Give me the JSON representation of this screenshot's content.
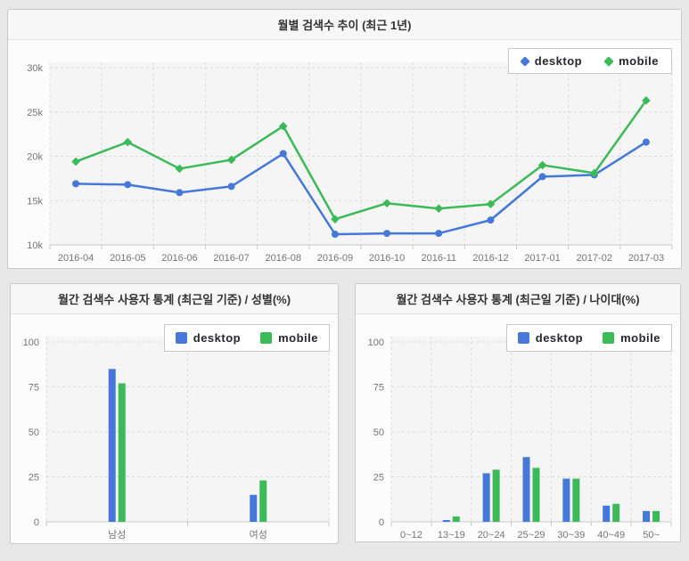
{
  "colors": {
    "desktop": "#4678d9",
    "mobile": "#3dba58",
    "plot_bg": "#f5f5f5",
    "grid": "#dcdcdc",
    "axis": "#c9c9c9",
    "tick_label": "#757575",
    "legend_text": "#26262c"
  },
  "legend": {
    "desktop_label": "desktop",
    "mobile_label": "mobile"
  },
  "chart_data": [
    {
      "type": "line",
      "title": "월별 검색수 추이 (최근 1년)",
      "categories": [
        "2016-04",
        "2016-05",
        "2016-06",
        "2016-07",
        "2016-08",
        "2016-09",
        "2016-10",
        "2016-11",
        "2016-12",
        "2017-01",
        "2017-02",
        "2017-03"
      ],
      "series": [
        {
          "name": "desktop",
          "marker": "circle",
          "values": [
            16900,
            16800,
            15900,
            16600,
            20300,
            11200,
            11300,
            11300,
            12800,
            17700,
            17900,
            21600
          ]
        },
        {
          "name": "mobile",
          "marker": "diamond",
          "values": [
            19400,
            21600,
            18600,
            19600,
            23400,
            12900,
            14700,
            14100,
            14600,
            19000,
            18100,
            26300
          ]
        }
      ],
      "ylim": [
        10000,
        30000
      ],
      "yticks": [
        {
          "value": 10000,
          "label": "10k"
        },
        {
          "value": 15000,
          "label": "15k"
        },
        {
          "value": 20000,
          "label": "20k"
        },
        {
          "value": 25000,
          "label": "25k"
        },
        {
          "value": 30000,
          "label": "30k"
        }
      ],
      "grid": true,
      "legend_position": "top-right"
    },
    {
      "type": "bar",
      "title": "월간 검색수 사용자 통계 (최근일 기준) / 성별(%)",
      "categories": [
        "남성",
        "여성"
      ],
      "series": [
        {
          "name": "desktop",
          "values": [
            85,
            15
          ]
        },
        {
          "name": "mobile",
          "values": [
            77,
            23
          ]
        }
      ],
      "ylim": [
        0,
        100
      ],
      "yticks": [
        {
          "value": 0,
          "label": "0"
        },
        {
          "value": 25,
          "label": "25"
        },
        {
          "value": 50,
          "label": "50"
        },
        {
          "value": 75,
          "label": "75"
        },
        {
          "value": 100,
          "label": "100"
        }
      ],
      "grid": true,
      "legend_position": "top-right"
    },
    {
      "type": "bar",
      "title": "월간 검색수 사용자 통계 (최근일 기준) / 나이대(%)",
      "categories": [
        "0~12",
        "13~19",
        "20~24",
        "25~29",
        "30~39",
        "40~49",
        "50~"
      ],
      "series": [
        {
          "name": "desktop",
          "values": [
            0,
            1,
            27,
            36,
            24,
            9,
            6
          ]
        },
        {
          "name": "mobile",
          "values": [
            0,
            3,
            29,
            30,
            24,
            10,
            6
          ]
        }
      ],
      "ylim": [
        0,
        100
      ],
      "yticks": [
        {
          "value": 0,
          "label": "0"
        },
        {
          "value": 25,
          "label": "25"
        },
        {
          "value": 50,
          "label": "50"
        },
        {
          "value": 75,
          "label": "75"
        },
        {
          "value": 100,
          "label": "100"
        }
      ],
      "grid": true,
      "legend_position": "top-right"
    }
  ]
}
